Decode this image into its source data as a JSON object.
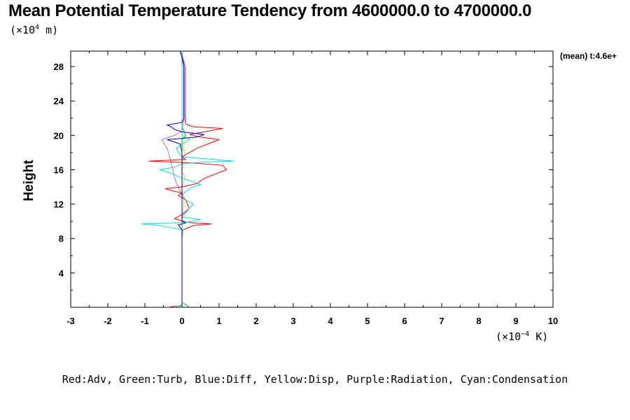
{
  "chart_data": {
    "type": "line",
    "title": "Mean Potential Temperature Tendency from 4600000.0 to 4700000.0",
    "y_unit_prefix": "(×10",
    "y_unit_exp": "4",
    "y_unit_suffix": " m)",
    "x_unit_prefix": "(×10",
    "x_unit_exp": "−4",
    "x_unit_suffix": " K)",
    "ylabel": "Height",
    "annotation": "(mean) t:4.6e+",
    "legend_caption": "Red:Adv, Green:Turb, Blue:Diff, Yellow:Disp, Purple:Radiation, Cyan:Condensation",
    "xlim": [
      -3,
      10
    ],
    "ylim": [
      0,
      29.8
    ],
    "x_ticks": [
      "-3",
      "-2",
      "-1",
      "0",
      "1",
      "2",
      "3",
      "4",
      "5",
      "6",
      "7",
      "8",
      "9",
      "10"
    ],
    "y_ticks": [
      "4",
      "8",
      "12",
      "16",
      "20",
      "24",
      "28"
    ],
    "series": [
      {
        "name": "Adv",
        "color": "#ff0000",
        "points": [
          [
            -0.4,
            0
          ],
          [
            0,
            0.2
          ],
          [
            0,
            8
          ],
          [
            0.02,
            9
          ],
          [
            0.3,
            9.5
          ],
          [
            0.8,
            9.7
          ],
          [
            0.3,
            9.8
          ],
          [
            0.05,
            10
          ],
          [
            -0.2,
            10.3
          ],
          [
            0,
            10.8
          ],
          [
            0.2,
            11.5
          ],
          [
            0.1,
            12.5
          ],
          [
            -0.1,
            13
          ],
          [
            0,
            13.3
          ],
          [
            -0.3,
            13.6
          ],
          [
            -0.45,
            13.8
          ],
          [
            0,
            14
          ],
          [
            0.4,
            14.4
          ],
          [
            0.6,
            15
          ],
          [
            1.2,
            16
          ],
          [
            1.1,
            16.5
          ],
          [
            0.3,
            16.8
          ],
          [
            -0.9,
            17
          ],
          [
            0.1,
            17.2
          ],
          [
            0,
            17.5
          ],
          [
            0.2,
            18
          ],
          [
            0.4,
            18.5
          ],
          [
            0.7,
            19
          ],
          [
            1,
            19.5
          ],
          [
            0.5,
            19.8
          ],
          [
            0.2,
            20.1
          ],
          [
            0.6,
            20.4
          ],
          [
            1.1,
            20.8
          ],
          [
            0.3,
            21
          ],
          [
            0.1,
            21.3
          ],
          [
            0.08,
            22
          ],
          [
            0.08,
            24
          ],
          [
            0.08,
            26
          ],
          [
            0.08,
            27
          ],
          [
            0.08,
            28
          ],
          [
            0.02,
            29
          ],
          [
            -0.05,
            29.8
          ]
        ]
      },
      {
        "name": "Turb",
        "color": "#00c000",
        "points": [
          [
            0.2,
            0
          ],
          [
            0.1,
            0.3
          ],
          [
            0,
            0.6
          ],
          [
            0,
            19.5
          ],
          [
            0.1,
            20
          ],
          [
            0.05,
            20.5
          ],
          [
            0,
            21
          ],
          [
            0,
            29.8
          ]
        ]
      },
      {
        "name": "Diff",
        "color": "#0000cc",
        "points": [
          [
            0,
            0
          ],
          [
            0,
            8
          ],
          [
            0,
            9
          ],
          [
            -0.1,
            9.6
          ],
          [
            0.1,
            9.8
          ],
          [
            0,
            10
          ],
          [
            0,
            16
          ],
          [
            0,
            18
          ],
          [
            -0.05,
            19
          ],
          [
            -0.4,
            19.5
          ],
          [
            0.4,
            19.8
          ],
          [
            0.6,
            20.1
          ],
          [
            0,
            20.4
          ],
          [
            -0.2,
            20.7
          ],
          [
            -0.3,
            21
          ],
          [
            -0.4,
            21.2
          ],
          [
            0,
            21.5
          ],
          [
            0.05,
            22
          ],
          [
            0.05,
            24
          ],
          [
            0.05,
            26
          ],
          [
            0.05,
            27
          ],
          [
            0.05,
            28
          ],
          [
            0,
            29
          ],
          [
            -0.05,
            29.8
          ]
        ]
      },
      {
        "name": "Disp",
        "color": "#e0e000",
        "points": [
          [
            0,
            0
          ],
          [
            0,
            10
          ],
          [
            0.05,
            12
          ],
          [
            0,
            14
          ],
          [
            0.08,
            15
          ],
          [
            0,
            16
          ],
          [
            0.05,
            16.5
          ],
          [
            0,
            17
          ],
          [
            0.08,
            18
          ],
          [
            0,
            19
          ],
          [
            0,
            29.8
          ]
        ]
      },
      {
        "name": "Radiation",
        "color": "#cc66cc",
        "points": [
          [
            0,
            0
          ],
          [
            0,
            13
          ],
          [
            -0.2,
            15
          ],
          [
            -0.3,
            17
          ],
          [
            -0.4,
            18.5
          ],
          [
            -0.55,
            19.5
          ],
          [
            -0.2,
            20
          ],
          [
            0,
            20.5
          ],
          [
            0.05,
            22
          ],
          [
            0.05,
            24
          ],
          [
            0.05,
            26
          ],
          [
            0.05,
            28
          ],
          [
            0,
            29.8
          ]
        ]
      },
      {
        "name": "Condensation",
        "color": "#00e0e0",
        "points": [
          [
            -0.2,
            0
          ],
          [
            0,
            0.3
          ],
          [
            0,
            8
          ],
          [
            0.02,
            9
          ],
          [
            -0.6,
            9.5
          ],
          [
            -1.1,
            9.7
          ],
          [
            -0.2,
            9.8
          ],
          [
            0.3,
            10
          ],
          [
            0.5,
            10.2
          ],
          [
            0,
            10.5
          ],
          [
            0.2,
            11.5
          ],
          [
            0.3,
            12
          ],
          [
            0.1,
            12.5
          ],
          [
            0,
            13
          ],
          [
            0.1,
            13.5
          ],
          [
            0.3,
            14
          ],
          [
            0.5,
            14.3
          ],
          [
            0.3,
            14.6
          ],
          [
            0,
            15
          ],
          [
            -0.3,
            15.6
          ],
          [
            -0.6,
            16
          ],
          [
            -0.2,
            16.3
          ],
          [
            0,
            16.7
          ],
          [
            0.6,
            16.9
          ],
          [
            1.4,
            17
          ],
          [
            0.6,
            17.3
          ],
          [
            0,
            17.5
          ],
          [
            -0.1,
            18
          ],
          [
            -0.15,
            18.5
          ],
          [
            0,
            19
          ],
          [
            0.2,
            19.5
          ],
          [
            0,
            20
          ],
          [
            0,
            29.8
          ]
        ]
      }
    ]
  }
}
